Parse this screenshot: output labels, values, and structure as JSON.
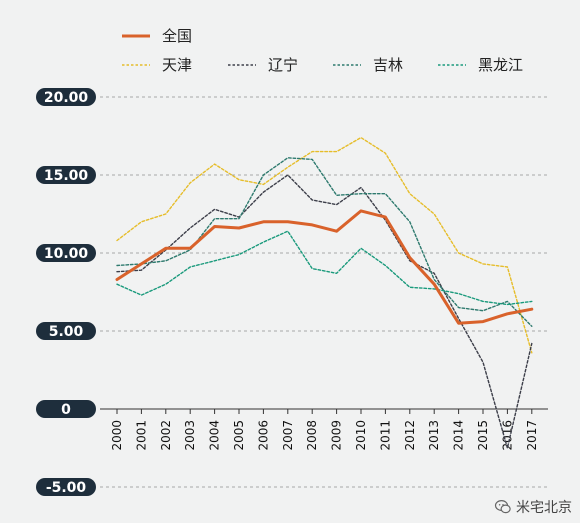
{
  "chart_data": {
    "type": "line",
    "title": "",
    "xlabel": "",
    "ylabel": "",
    "ylim": [
      -5,
      20
    ],
    "y_ticks": [
      "-5.00",
      "0",
      "5.00",
      "10.00",
      "15.00",
      "20.00"
    ],
    "x": [
      "2000",
      "2001",
      "2002",
      "2003",
      "2004",
      "2005",
      "2006",
      "2007",
      "2008",
      "2009",
      "2010",
      "2011",
      "2012",
      "2013",
      "2014",
      "2015",
      "2016",
      "2017"
    ],
    "grid": true,
    "legend_position": "top",
    "series": [
      {
        "name": "全国",
        "color": "#d9622b",
        "style": "solid",
        "values": [
          8.3,
          9.3,
          10.3,
          10.3,
          11.7,
          11.6,
          12.0,
          12.0,
          11.8,
          11.4,
          12.7,
          12.3,
          9.7,
          8.0,
          5.5,
          5.6,
          6.1,
          6.4
        ]
      },
      {
        "name": "天津",
        "color": "#e6bd2a",
        "style": "dotted",
        "values": [
          10.8,
          12.0,
          12.5,
          14.5,
          15.7,
          14.7,
          14.4,
          15.5,
          16.5,
          16.5,
          17.4,
          16.4,
          13.8,
          12.5,
          10.0,
          9.3,
          9.1,
          3.6
        ]
      },
      {
        "name": "辽宁",
        "color": "#3d3f4a",
        "style": "dotted",
        "values": [
          8.8,
          8.9,
          10.2,
          11.6,
          12.8,
          12.3,
          13.9,
          15.0,
          13.4,
          13.1,
          14.2,
          12.1,
          9.5,
          8.7,
          5.8,
          3.0,
          -2.5,
          4.2
        ]
      },
      {
        "name": "吉林",
        "color": "#2e7a6e",
        "style": "dotted",
        "values": [
          9.2,
          9.3,
          9.5,
          10.2,
          12.2,
          12.2,
          15.0,
          16.1,
          16.0,
          13.7,
          13.8,
          13.8,
          12.0,
          8.3,
          6.5,
          6.3,
          6.9,
          5.3
        ]
      },
      {
        "name": "黑龙江",
        "color": "#1a9a7c",
        "style": "dotted",
        "values": [
          8.0,
          7.3,
          8.0,
          9.1,
          9.5,
          9.9,
          10.7,
          11.4,
          9.0,
          8.7,
          10.3,
          9.2,
          7.8,
          7.7,
          7.4,
          6.9,
          6.7,
          6.9
        ]
      }
    ]
  },
  "watermark": {
    "text": "米宅北京",
    "icon": "wechat-icon"
  }
}
